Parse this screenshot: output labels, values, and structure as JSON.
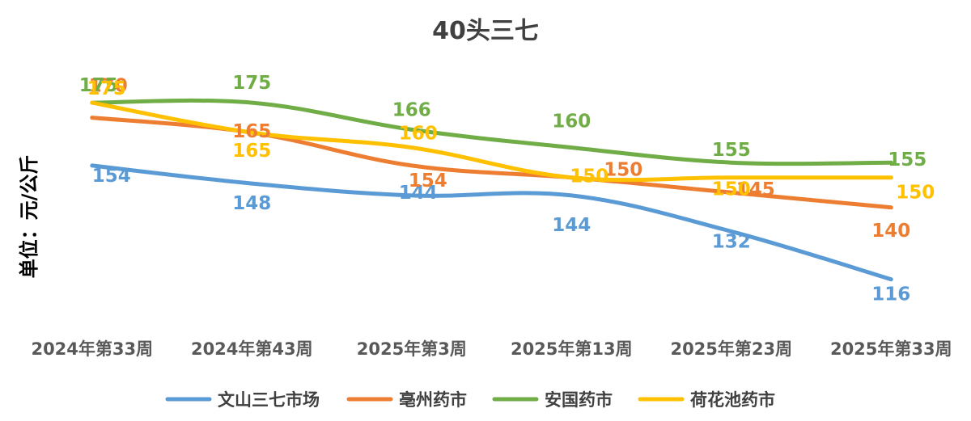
{
  "chart_data": {
    "type": "line",
    "title": "40头三七",
    "ylabel": "单位：元/公斤",
    "xlabel": "",
    "categories": [
      "2024年第33周",
      "2024年第43周",
      "2025年第3周",
      "2025年第13周",
      "2025年第23周",
      "2025年第33周"
    ],
    "ylim": [
      100,
      185
    ],
    "grid": false,
    "legend_position": "bottom",
    "series": [
      {
        "name": "文山三七市场",
        "color": "#5B9BD5",
        "values": [
          154,
          148,
          144,
          144,
          132,
          116
        ],
        "labels": [
          "154",
          "148",
          "144",
          "144",
          "132",
          "116"
        ]
      },
      {
        "name": "亳州药市",
        "color": "#ED7D31",
        "values": [
          170,
          165,
          154,
          150,
          145,
          140
        ],
        "labels": [
          "170",
          "165",
          "154",
          "150",
          "145",
          "140"
        ]
      },
      {
        "name": "安国药市",
        "color": "#70AD47",
        "values": [
          175,
          175,
          166,
          160,
          155,
          155
        ],
        "labels": [
          "175",
          "175",
          "166",
          "160",
          "155",
          "155"
        ]
      },
      {
        "name": "荷花池药市",
        "color": "#FFC000",
        "values": [
          175,
          165,
          160,
          150,
          150,
          150
        ],
        "labels": [
          "175",
          "165",
          "160",
          "150",
          "150",
          "150"
        ]
      }
    ]
  }
}
